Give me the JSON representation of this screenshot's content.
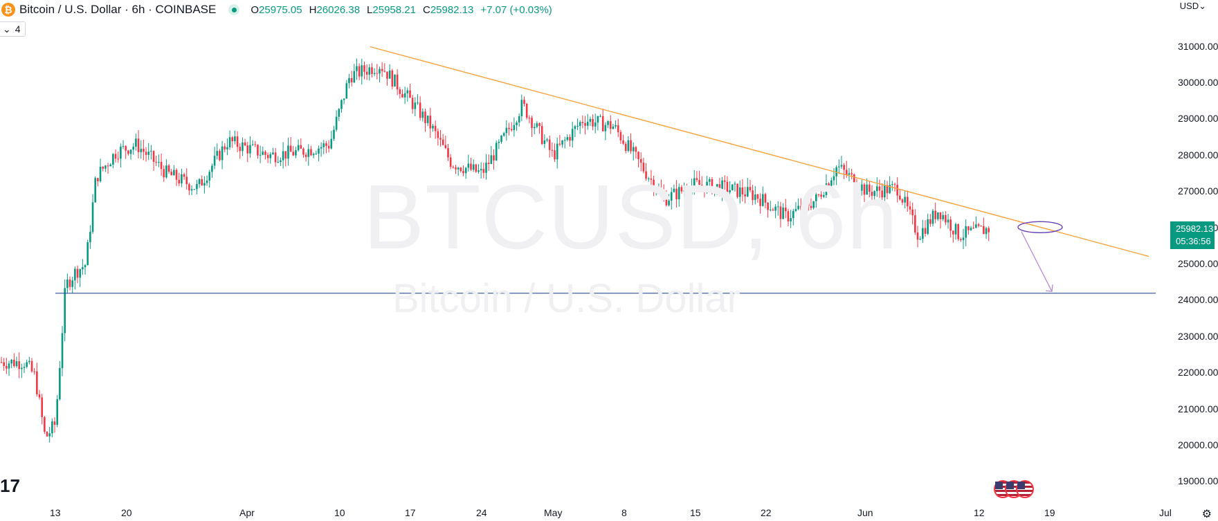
{
  "header": {
    "logo_glyph": "₿",
    "title": "Bitcoin / U.S. Dollar · 6h · COINBASE",
    "ohlc": [
      {
        "key": "O",
        "value": "25975.05"
      },
      {
        "key": "H",
        "value": "26026.38"
      },
      {
        "key": "L",
        "value": "25958.21"
      },
      {
        "key": "C",
        "value": "25982.13"
      }
    ],
    "change": "+7.07 (+0.03%)",
    "indicator_badge": {
      "chevron": "⌄",
      "count": "4"
    },
    "currency": "USD⌄"
  },
  "watermark": {
    "symbol": "BTCUSD, 6h",
    "description": "Bitcoin / U.S. Dollar"
  },
  "last_price": {
    "price": "25982.13",
    "countdown": "05:36:56"
  },
  "tv_logo": "17",
  "settings_icon": "⚙",
  "colors": {
    "up": "#089981",
    "down": "#f23645",
    "trendline": "#f7a23b",
    "support": "#2a4d9b",
    "arrow": "#b180d6",
    "ellipse": "#6a3fb5"
  },
  "chart_data": {
    "type": "candlestick",
    "symbol": "BTCUSD",
    "interval": "6h",
    "exchange": "COINBASE",
    "x_tick_labels": [
      "13",
      "20",
      "Apr",
      "10",
      "17",
      "24",
      "May",
      "8",
      "15",
      "22",
      "Jun",
      "12",
      "19",
      "Jul"
    ],
    "y_tick_labels": [
      "31000.00",
      "30000.00",
      "29000.00",
      "28000.00",
      "27000.00",
      "26000.00",
      "25000.00",
      "24000.00",
      "23000.00",
      "22000.00",
      "21000.00",
      "20000.00",
      "19000.00"
    ],
    "ylim": [
      18600,
      31900
    ],
    "support_level": 24200,
    "descending_trendline": [
      {
        "date": "Apr 13",
        "price": 31000
      },
      {
        "date": "Jun 13",
        "price": 26400
      }
    ],
    "projection_arrow": {
      "from": 25900,
      "to": 24250
    },
    "close_path_approx": [
      {
        "date": "Mar 10",
        "close": 22300
      },
      {
        "date": "Mar 11",
        "close": 21900
      },
      {
        "date": "Mar 12",
        "close": 20200
      },
      {
        "date": "Mar 13",
        "close": 20600
      },
      {
        "date": "Mar 14",
        "close": 24400
      },
      {
        "date": "Mar 15",
        "close": 24800
      },
      {
        "date": "Mar 16",
        "close": 25000
      },
      {
        "date": "Mar 17",
        "close": 27400
      },
      {
        "date": "Mar 19",
        "close": 28100
      },
      {
        "date": "Mar 21",
        "close": 28300
      },
      {
        "date": "Mar 24",
        "close": 27500
      },
      {
        "date": "Mar 27",
        "close": 27100
      },
      {
        "date": "Mar 30",
        "close": 28400
      },
      {
        "date": "Apr 3",
        "close": 28000
      },
      {
        "date": "Apr 6",
        "close": 28100
      },
      {
        "date": "Apr 9",
        "close": 28300
      },
      {
        "date": "Apr 11",
        "close": 30200
      },
      {
        "date": "Apr 14",
        "close": 30500
      },
      {
        "date": "Apr 17",
        "close": 29500
      },
      {
        "date": "Apr 19",
        "close": 28800
      },
      {
        "date": "Apr 21",
        "close": 27800
      },
      {
        "date": "Apr 24",
        "close": 27500
      },
      {
        "date": "Apr 26",
        "close": 28400
      },
      {
        "date": "Apr 28",
        "close": 29400
      },
      {
        "date": "May 1",
        "close": 28000
      },
      {
        "date": "May 4",
        "close": 29000
      },
      {
        "date": "May 7",
        "close": 28800
      },
      {
        "date": "May 10",
        "close": 27600
      },
      {
        "date": "May 12",
        "close": 26800
      },
      {
        "date": "May 15",
        "close": 27200
      },
      {
        "date": "May 18",
        "close": 27100
      },
      {
        "date": "May 21",
        "close": 26900
      },
      {
        "date": "May 24",
        "close": 26300
      },
      {
        "date": "May 27",
        "close": 26800
      },
      {
        "date": "May 29",
        "close": 27700
      },
      {
        "date": "Jun 1",
        "close": 27000
      },
      {
        "date": "Jun 4",
        "close": 27100
      },
      {
        "date": "Jun 6",
        "close": 25800
      },
      {
        "date": "Jun 8",
        "close": 26500
      },
      {
        "date": "Jun 10",
        "close": 25800
      },
      {
        "date": "Jun 13",
        "close": 25982.13
      }
    ]
  }
}
